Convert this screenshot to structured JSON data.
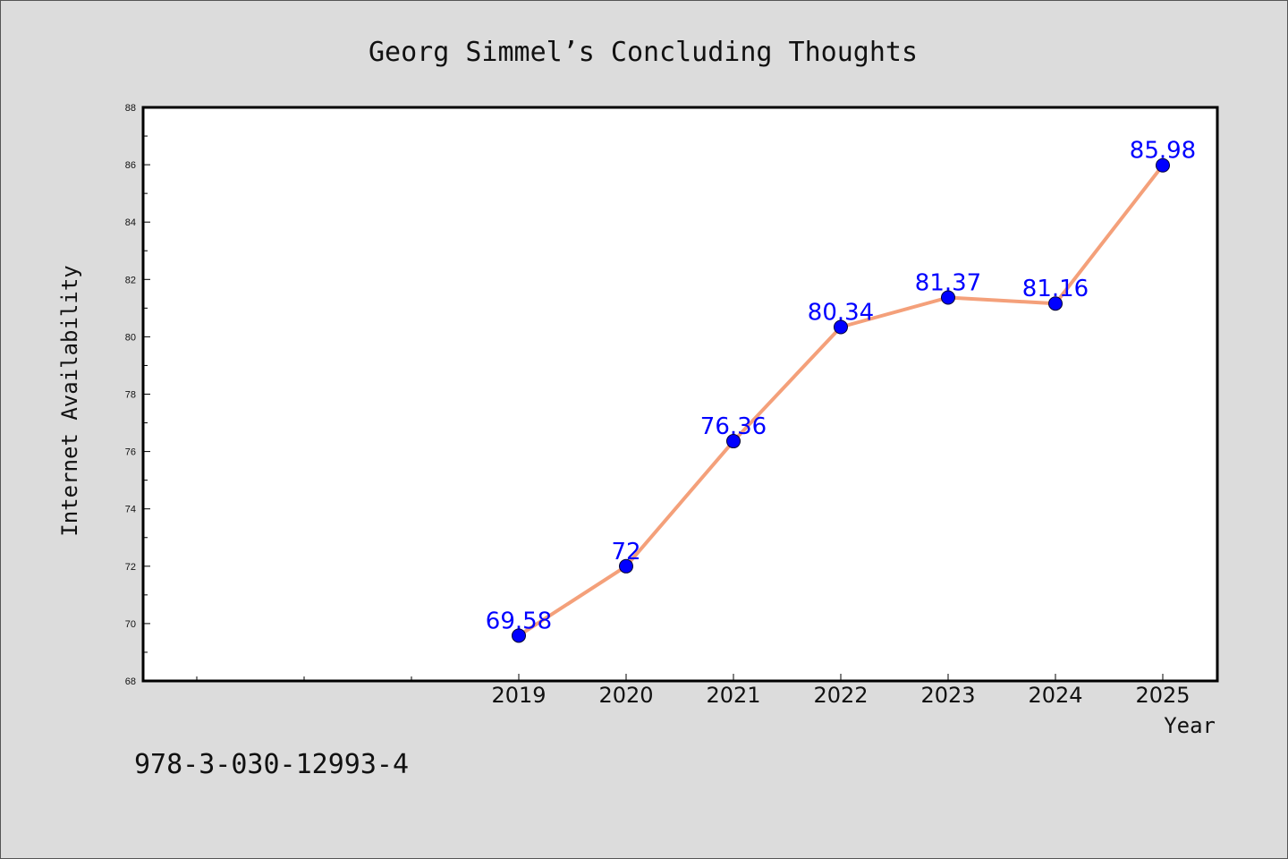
{
  "chart_data": {
    "type": "line",
    "title": "Georg Simmel’s Concluding Thoughts",
    "xlabel": "Year",
    "ylabel": "Internet Availability",
    "categories": [
      "2019",
      "2020",
      "2021",
      "2022",
      "2023",
      "2024",
      "2025"
    ],
    "series": [
      {
        "values": [
          69.58,
          72,
          76.36,
          80.34,
          81.37,
          81.16,
          85.98
        ]
      }
    ],
    "data_labels": [
      "69.58",
      "72",
      "76.36",
      "80.34",
      "81.37",
      "81.16",
      "85.98"
    ],
    "ylim": [
      68,
      88
    ],
    "ytick_labels": [
      "68",
      "70",
      "72",
      "74",
      "76",
      "78",
      "80",
      "82",
      "84",
      "86",
      "88"
    ],
    "grid": false,
    "line_color": "#f4a07a",
    "marker_color": "#0000ff",
    "label_color": "#0000ff"
  },
  "footer": {
    "isbn": "978-3-030-12993-4"
  }
}
